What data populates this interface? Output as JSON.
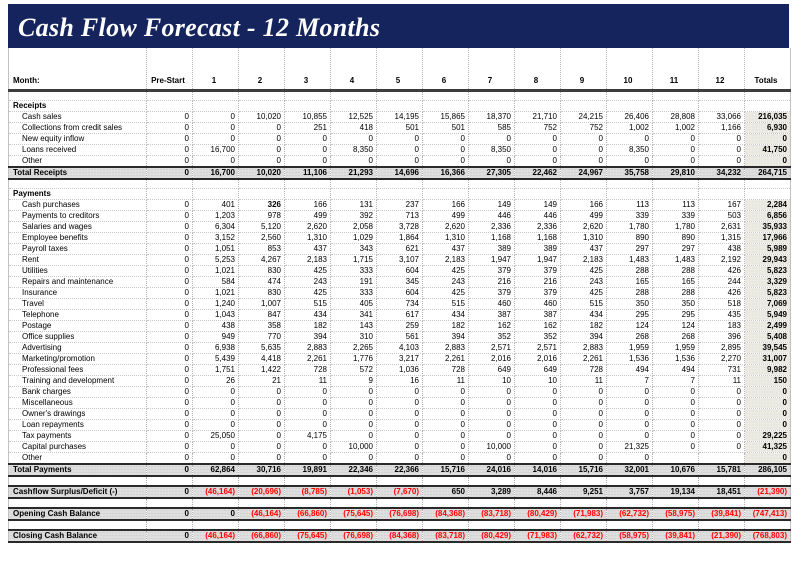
{
  "title": "Cash Flow Forecast - 12 Months",
  "colors": {
    "banner_bg": "#15245c",
    "negative_text": "#ff0000",
    "total_row_bg": "#dedede",
    "totals_column_bg": "#ecece4"
  },
  "header": {
    "label": "Month:",
    "pre_start": "Pre-Start",
    "months": [
      "1",
      "2",
      "3",
      "4",
      "5",
      "6",
      "7",
      "8",
      "9",
      "10",
      "11",
      "12"
    ],
    "totals": "Totals",
    "comment_marker_count": 3
  },
  "rows": [
    {
      "type": "blank"
    },
    {
      "type": "section",
      "label": "Receipts"
    },
    {
      "type": "detail",
      "label": "Cash sales",
      "values": [
        "0",
        "0",
        "10,020",
        "10,855",
        "12,525",
        "14,195",
        "15,865",
        "18,370",
        "21,710",
        "24,215",
        "26,406",
        "28,808",
        "33,066",
        "216,035"
      ]
    },
    {
      "type": "detail",
      "label": "Collections from credit sales",
      "values": [
        "0",
        "0",
        "0",
        "251",
        "418",
        "501",
        "501",
        "585",
        "752",
        "752",
        "1,002",
        "1,002",
        "1,166",
        "6,930"
      ]
    },
    {
      "type": "detail",
      "label": "New equity inflow",
      "values": [
        "0",
        "0",
        "0",
        "0",
        "0",
        "0",
        "0",
        "0",
        "0",
        "0",
        "0",
        "0",
        "0",
        "0"
      ]
    },
    {
      "type": "detail",
      "label": "Loans received",
      "values": [
        "0",
        "16,700",
        "0",
        "0",
        "8,350",
        "0",
        "0",
        "8,350",
        "0",
        "0",
        "8,350",
        "0",
        "0",
        "41,750"
      ]
    },
    {
      "type": "detail",
      "label": "Other",
      "values": [
        "0",
        "0",
        "0",
        "0",
        "0",
        "0",
        "0",
        "0",
        "0",
        "0",
        "0",
        "0",
        "0",
        "0"
      ]
    },
    {
      "type": "total",
      "label": "Total Receipts",
      "values": [
        "0",
        "16,700",
        "10,020",
        "11,106",
        "21,293",
        "14,696",
        "16,366",
        "27,305",
        "22,462",
        "24,967",
        "35,758",
        "29,810",
        "34,232",
        "264,715"
      ]
    },
    {
      "type": "blank"
    },
    {
      "type": "section",
      "label": "Payments"
    },
    {
      "type": "detail",
      "label": "Cash purchases",
      "bold_index": 2,
      "values": [
        "0",
        "401",
        "326",
        "166",
        "131",
        "237",
        "166",
        "149",
        "149",
        "166",
        "113",
        "113",
        "167",
        "2,284"
      ]
    },
    {
      "type": "detail",
      "label": "Payments to creditors",
      "values": [
        "0",
        "1,203",
        "978",
        "499",
        "392",
        "713",
        "499",
        "446",
        "446",
        "499",
        "339",
        "339",
        "503",
        "6,856"
      ]
    },
    {
      "type": "detail",
      "label": "Salaries and wages",
      "values": [
        "0",
        "6,304",
        "5,120",
        "2,620",
        "2,058",
        "3,728",
        "2,620",
        "2,336",
        "2,336",
        "2,620",
        "1,780",
        "1,780",
        "2,631",
        "35,933"
      ]
    },
    {
      "type": "detail",
      "label": "Employee benefits",
      "values": [
        "0",
        "3,152",
        "2,560",
        "1,310",
        "1,029",
        "1,864",
        "1,310",
        "1,168",
        "1,168",
        "1,310",
        "890",
        "890",
        "1,315",
        "17,966"
      ]
    },
    {
      "type": "detail",
      "label": "Payroll taxes",
      "values": [
        "0",
        "1,051",
        "853",
        "437",
        "343",
        "621",
        "437",
        "389",
        "389",
        "437",
        "297",
        "297",
        "438",
        "5,989"
      ]
    },
    {
      "type": "detail",
      "label": "Rent",
      "values": [
        "0",
        "5,253",
        "4,267",
        "2,183",
        "1,715",
        "3,107",
        "2,183",
        "1,947",
        "1,947",
        "2,183",
        "1,483",
        "1,483",
        "2,192",
        "29,943"
      ]
    },
    {
      "type": "detail",
      "label": "Utilities",
      "values": [
        "0",
        "1,021",
        "830",
        "425",
        "333",
        "604",
        "425",
        "379",
        "379",
        "425",
        "288",
        "288",
        "426",
        "5,823"
      ]
    },
    {
      "type": "detail",
      "label": "Repairs and maintenance",
      "values": [
        "0",
        "584",
        "474",
        "243",
        "191",
        "345",
        "243",
        "216",
        "216",
        "243",
        "165",
        "165",
        "244",
        "3,329"
      ]
    },
    {
      "type": "detail",
      "label": "Insurance",
      "values": [
        "0",
        "1,021",
        "830",
        "425",
        "333",
        "604",
        "425",
        "379",
        "379",
        "425",
        "288",
        "288",
        "426",
        "5,823"
      ]
    },
    {
      "type": "detail",
      "label": "Travel",
      "values": [
        "0",
        "1,240",
        "1,007",
        "515",
        "405",
        "734",
        "515",
        "460",
        "460",
        "515",
        "350",
        "350",
        "518",
        "7,069"
      ]
    },
    {
      "type": "detail",
      "label": "Telephone",
      "values": [
        "0",
        "1,043",
        "847",
        "434",
        "341",
        "617",
        "434",
        "387",
        "387",
        "434",
        "295",
        "295",
        "435",
        "5,949"
      ]
    },
    {
      "type": "detail",
      "label": "Postage",
      "values": [
        "0",
        "438",
        "358",
        "182",
        "143",
        "259",
        "182",
        "162",
        "162",
        "182",
        "124",
        "124",
        "183",
        "2,499"
      ]
    },
    {
      "type": "detail",
      "label": "Office supplies",
      "values": [
        "0",
        "949",
        "770",
        "394",
        "310",
        "561",
        "394",
        "352",
        "352",
        "394",
        "268",
        "268",
        "396",
        "5,408"
      ]
    },
    {
      "type": "detail",
      "label": "Advertising",
      "values": [
        "0",
        "6,938",
        "5,635",
        "2,883",
        "2,265",
        "4,103",
        "2,883",
        "2,571",
        "2,571",
        "2,883",
        "1,959",
        "1,959",
        "2,895",
        "39,545"
      ]
    },
    {
      "type": "detail",
      "label": "Marketing/promotion",
      "values": [
        "0",
        "5,439",
        "4,418",
        "2,261",
        "1,776",
        "3,217",
        "2,261",
        "2,016",
        "2,016",
        "2,261",
        "1,536",
        "1,536",
        "2,270",
        "31,007"
      ]
    },
    {
      "type": "detail",
      "label": "Professional fees",
      "values": [
        "0",
        "1,751",
        "1,422",
        "728",
        "572",
        "1,036",
        "728",
        "649",
        "649",
        "728",
        "494",
        "494",
        "731",
        "9,982"
      ]
    },
    {
      "type": "detail",
      "label": "Training and development",
      "values": [
        "0",
        "26",
        "21",
        "11",
        "9",
        "16",
        "11",
        "10",
        "10",
        "11",
        "7",
        "7",
        "11",
        "150"
      ]
    },
    {
      "type": "detail",
      "label": "Bank charges",
      "values": [
        "0",
        "0",
        "0",
        "0",
        "0",
        "0",
        "0",
        "0",
        "0",
        "0",
        "0",
        "0",
        "0",
        "0"
      ]
    },
    {
      "type": "detail",
      "label": "Miscellaneous",
      "values": [
        "0",
        "0",
        "0",
        "0",
        "0",
        "0",
        "0",
        "0",
        "0",
        "0",
        "0",
        "0",
        "0",
        "0"
      ]
    },
    {
      "type": "detail",
      "label": "Owner's drawings",
      "values": [
        "0",
        "0",
        "0",
        "0",
        "0",
        "0",
        "0",
        "0",
        "0",
        "0",
        "0",
        "0",
        "0",
        "0"
      ]
    },
    {
      "type": "detail",
      "label": "Loan repayments",
      "values": [
        "0",
        "0",
        "0",
        "0",
        "0",
        "0",
        "0",
        "0",
        "0",
        "0",
        "0",
        "0",
        "0",
        "0"
      ]
    },
    {
      "type": "detail",
      "label": "Tax payments",
      "values": [
        "0",
        "25,050",
        "0",
        "4,175",
        "0",
        "0",
        "0",
        "0",
        "0",
        "0",
        "0",
        "0",
        "0",
        "29,225"
      ]
    },
    {
      "type": "detail",
      "label": "Capital purchases",
      "values": [
        "0",
        "0",
        "0",
        "0",
        "10,000",
        "0",
        "0",
        "10,000",
        "0",
        "0",
        "21,325",
        "0",
        "0",
        "41,325"
      ]
    },
    {
      "type": "detail",
      "label": "Other",
      "values": [
        "0",
        "0",
        "0",
        "0",
        "0",
        "0",
        "0",
        "0",
        "0",
        "0",
        "0",
        "",
        "",
        "0"
      ]
    },
    {
      "type": "total",
      "label": "Total Payments",
      "values": [
        "0",
        "62,864",
        "30,716",
        "19,891",
        "22,346",
        "22,366",
        "15,716",
        "24,016",
        "14,016",
        "15,716",
        "32,001",
        "10,676",
        "15,781",
        "286,105"
      ]
    },
    {
      "type": "blank"
    },
    {
      "type": "total",
      "label": "Cashflow Surplus/Deficit (-)",
      "values": [
        "0",
        "(46,164)",
        "(20,696)",
        "(8,785)",
        "(1,053)",
        "(7,670)",
        "650",
        "3,289",
        "8,446",
        "9,251",
        "3,757",
        "19,134",
        "18,451",
        "(21,390)"
      ]
    },
    {
      "type": "blank"
    },
    {
      "type": "total",
      "label": "Opening Cash Balance",
      "values": [
        "0",
        "0",
        "(46,164)",
        "(66,860)",
        "(75,645)",
        "(76,698)",
        "(84,368)",
        "(83,718)",
        "(80,429)",
        "(71,983)",
        "(62,732)",
        "(58,975)",
        "(39,841)",
        "(747,413)"
      ]
    },
    {
      "type": "blank"
    },
    {
      "type": "total",
      "label": "Closing Cash Balance",
      "values": [
        "0",
        "(46,164)",
        "(66,860)",
        "(75,645)",
        "(76,698)",
        "(84,368)",
        "(83,718)",
        "(80,429)",
        "(71,983)",
        "(62,732)",
        "(58,975)",
        "(39,841)",
        "(21,390)",
        "(768,803)"
      ]
    }
  ]
}
